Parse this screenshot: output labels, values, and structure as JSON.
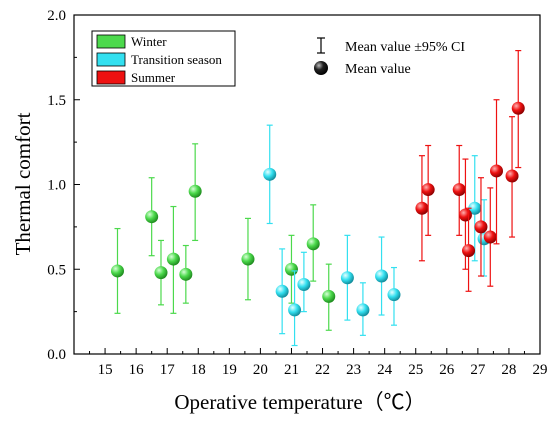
{
  "chart_data": {
    "type": "scatter",
    "xlabel": "Operative temperature（℃）",
    "ylabel": "Thermal comfort",
    "xlim": [
      14,
      29
    ],
    "ylim": [
      0,
      2
    ],
    "xticks": [
      "15",
      "16",
      "17",
      "18",
      "19",
      "20",
      "21",
      "22",
      "23",
      "24",
      "25",
      "26",
      "27",
      "28",
      "29"
    ],
    "yticks": [
      "0.0",
      "0.5",
      "1.0",
      "1.5",
      "2.0"
    ],
    "grid": false,
    "legend_position": "top-left",
    "series": [
      {
        "name": "Winter",
        "color": "#4cd94c",
        "points": [
          {
            "x": 15.4,
            "y": 0.49,
            "lo": 0.24,
            "hi": 0.74
          },
          {
            "x": 16.5,
            "y": 0.81,
            "lo": 0.58,
            "hi": 1.04
          },
          {
            "x": 16.8,
            "y": 0.48,
            "lo": 0.29,
            "hi": 0.67
          },
          {
            "x": 17.2,
            "y": 0.56,
            "lo": 0.24,
            "hi": 0.87
          },
          {
            "x": 17.6,
            "y": 0.47,
            "lo": 0.3,
            "hi": 0.64
          },
          {
            "x": 17.9,
            "y": 0.96,
            "lo": 0.67,
            "hi": 1.24
          },
          {
            "x": 19.6,
            "y": 0.56,
            "lo": 0.32,
            "hi": 0.8
          },
          {
            "x": 21.0,
            "y": 0.5,
            "lo": 0.3,
            "hi": 0.7
          },
          {
            "x": 21.7,
            "y": 0.65,
            "lo": 0.43,
            "hi": 0.88
          },
          {
            "x": 22.2,
            "y": 0.34,
            "lo": 0.14,
            "hi": 0.53
          }
        ]
      },
      {
        "name": "Transition season",
        "color": "#33e0f0",
        "points": [
          {
            "x": 20.3,
            "y": 1.06,
            "lo": 0.77,
            "hi": 1.35
          },
          {
            "x": 20.7,
            "y": 0.37,
            "lo": 0.12,
            "hi": 0.62
          },
          {
            "x": 21.1,
            "y": 0.26,
            "lo": 0.05,
            "hi": 0.49
          },
          {
            "x": 21.4,
            "y": 0.41,
            "lo": 0.25,
            "hi": 0.6
          },
          {
            "x": 22.8,
            "y": 0.45,
            "lo": 0.2,
            "hi": 0.7
          },
          {
            "x": 23.3,
            "y": 0.26,
            "lo": 0.11,
            "hi": 0.42
          },
          {
            "x": 23.9,
            "y": 0.46,
            "lo": 0.23,
            "hi": 0.69
          },
          {
            "x": 24.3,
            "y": 0.35,
            "lo": 0.17,
            "hi": 0.51
          },
          {
            "x": 26.9,
            "y": 0.86,
            "lo": 0.55,
            "hi": 1.17
          },
          {
            "x": 27.2,
            "y": 0.68,
            "lo": 0.46,
            "hi": 0.91
          }
        ]
      },
      {
        "name": "Summer",
        "color": "#ee1111",
        "points": [
          {
            "x": 25.2,
            "y": 0.86,
            "lo": 0.55,
            "hi": 1.17
          },
          {
            "x": 25.4,
            "y": 0.97,
            "lo": 0.7,
            "hi": 1.23
          },
          {
            "x": 26.4,
            "y": 0.97,
            "lo": 0.7,
            "hi": 1.23
          },
          {
            "x": 26.6,
            "y": 0.82,
            "lo": 0.5,
            "hi": 1.15
          },
          {
            "x": 26.7,
            "y": 0.61,
            "lo": 0.37,
            "hi": 0.86
          },
          {
            "x": 27.1,
            "y": 0.75,
            "lo": 0.46,
            "hi": 1.04
          },
          {
            "x": 27.4,
            "y": 0.69,
            "lo": 0.4,
            "hi": 0.98
          },
          {
            "x": 27.6,
            "y": 1.08,
            "lo": 0.65,
            "hi": 1.5
          },
          {
            "x": 28.1,
            "y": 1.05,
            "lo": 0.69,
            "hi": 1.4
          },
          {
            "x": 28.3,
            "y": 1.45,
            "lo": 1.1,
            "hi": 1.79
          }
        ]
      }
    ],
    "legend2": [
      {
        "label": "Mean value ±95% CI",
        "symbol": "error-bar"
      },
      {
        "label": "Mean value",
        "symbol": "black-ball"
      }
    ]
  }
}
